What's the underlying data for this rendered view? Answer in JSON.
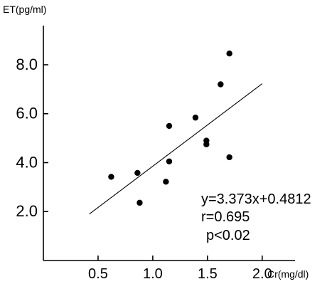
{
  "chart_data": {
    "type": "scatter",
    "title": "",
    "xlabel": "Cr(mg/dl)",
    "ylabel": "ET(pg/ml)",
    "xlim": [
      0.0,
      2.3
    ],
    "ylim": [
      0.0,
      9.6
    ],
    "x_ticks": [
      0.5,
      1.0,
      1.5,
      2.0
    ],
    "x_tick_labels": [
      "0.5",
      "1.0",
      "1.5",
      "2.0"
    ],
    "y_ticks": [
      2.0,
      4.0,
      6.0,
      8.0
    ],
    "y_tick_labels": [
      "2.0",
      "4.0",
      "6.0",
      "8.0"
    ],
    "grid": false,
    "series": [
      {
        "points": [
          {
            "x": 0.62,
            "y": 3.42
          },
          {
            "x": 0.86,
            "y": 3.58
          },
          {
            "x": 0.88,
            "y": 2.36
          },
          {
            "x": 1.12,
            "y": 3.22
          },
          {
            "x": 1.15,
            "y": 4.05
          },
          {
            "x": 1.15,
            "y": 5.5
          },
          {
            "x": 1.39,
            "y": 5.84
          },
          {
            "x": 1.49,
            "y": 4.75
          },
          {
            "x": 1.49,
            "y": 4.9
          },
          {
            "x": 1.62,
            "y": 7.2
          },
          {
            "x": 1.7,
            "y": 4.22
          },
          {
            "x": 1.7,
            "y": 8.46
          }
        ]
      }
    ],
    "regression": {
      "slope": 3.373,
      "intercept": 0.4812,
      "x_range": [
        0.42,
        2.0
      ]
    },
    "annotations": [
      "y=3.373x+0.4812",
      "r=0.695",
      "p<0.02"
    ]
  }
}
